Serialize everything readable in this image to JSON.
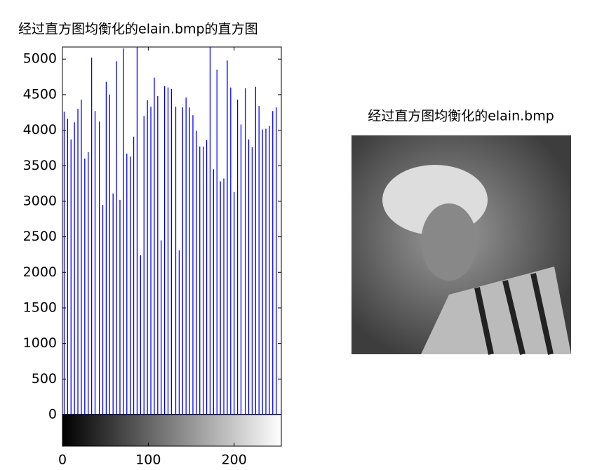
{
  "chart_data": {
    "type": "stem",
    "title": "经过直方图均衡化的elain.bmp的直方图",
    "image_title": "经过直方图均衡化的elain.bmp",
    "color": "#0000ff",
    "x": [
      2,
      6,
      10,
      14,
      18,
      22,
      26,
      30,
      34,
      38,
      43,
      47,
      51,
      55,
      59,
      63,
      67,
      71,
      75,
      79,
      83,
      87,
      91,
      95,
      99,
      103,
      107,
      111,
      115,
      119,
      123,
      127,
      132,
      136,
      140,
      144,
      148,
      152,
      156,
      160,
      164,
      168,
      172,
      176,
      180,
      184,
      188,
      192,
      196,
      200,
      204,
      208,
      213,
      217,
      221,
      225,
      229,
      233,
      237,
      241,
      245,
      249,
      255
    ],
    "values": [
      4260,
      4160,
      3870,
      4110,
      4300,
      4430,
      3600,
      3690,
      5020,
      4270,
      4120,
      2950,
      4680,
      4500,
      3110,
      4970,
      3020,
      5150,
      3670,
      3630,
      3910,
      5180,
      2240,
      4200,
      4420,
      4330,
      4740,
      4480,
      2450,
      4620,
      4600,
      4580,
      4330,
      2310,
      4320,
      4460,
      4320,
      4210,
      3990,
      3770,
      3770,
      3860,
      5180,
      3450,
      4850,
      3280,
      3320,
      4980,
      4600,
      3130,
      4430,
      4080,
      4590,
      3870,
      3760,
      4610,
      4340,
      4010,
      4020,
      4060,
      4270,
      4320,
      60
    ],
    "xlim": [
      0,
      255
    ],
    "ylim": [
      0,
      5170
    ],
    "xticks": [
      0,
      100,
      200
    ],
    "yticks": [
      0,
      500,
      1000,
      1500,
      2000,
      2500,
      3000,
      3500,
      4000,
      4500,
      5000
    ]
  }
}
